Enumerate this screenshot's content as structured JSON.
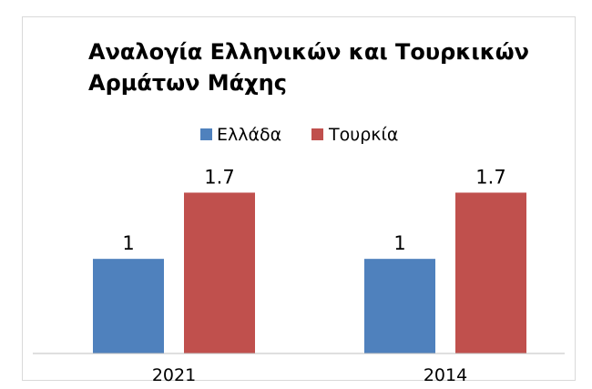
{
  "chart_data": {
    "type": "bar",
    "title": "Αναλογία Ελληνικών και Τουρκικών\nΑρμάτων Μάχης",
    "categories": [
      "2021",
      "2014"
    ],
    "series": [
      {
        "name": "Ελλάδα",
        "values": [
          1,
          1
        ],
        "color": "#4f81bd"
      },
      {
        "name": "Τουρκία",
        "values": [
          1.7,
          1.7
        ],
        "color": "#c0504d"
      }
    ],
    "ylim": [
      0,
      2.6
    ],
    "legend_position": "top",
    "data_labels": true,
    "grid": false
  }
}
